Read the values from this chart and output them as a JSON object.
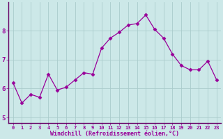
{
  "x": [
    0,
    1,
    2,
    3,
    4,
    5,
    6,
    7,
    8,
    9,
    10,
    11,
    12,
    13,
    14,
    15,
    16,
    17,
    18,
    19,
    20,
    21,
    22,
    23
  ],
  "y": [
    6.2,
    5.5,
    5.8,
    5.7,
    6.5,
    5.95,
    6.05,
    6.3,
    6.55,
    6.5,
    7.4,
    7.75,
    7.95,
    8.2,
    8.25,
    8.55,
    8.05,
    7.75,
    7.2,
    6.8,
    6.65,
    6.65,
    6.95,
    6.3
  ],
  "line_color": "#990099",
  "marker": "D",
  "marker_size": 2.5,
  "bg_color": "#cce8e8",
  "grid_color": "#aacccc",
  "xlabel": "Windchill (Refroidissement éolien,°C)",
  "xlabel_color": "#990099",
  "tick_color": "#990099",
  "spine_color": "#660066",
  "ylim": [
    4.8,
    9.0
  ],
  "yticks": [
    5,
    6,
    7,
    8
  ],
  "xlim": [
    -0.5,
    23.5
  ],
  "xtick_fontsize": 5.0,
  "ytick_fontsize": 6.5,
  "xlabel_fontsize": 6.0
}
